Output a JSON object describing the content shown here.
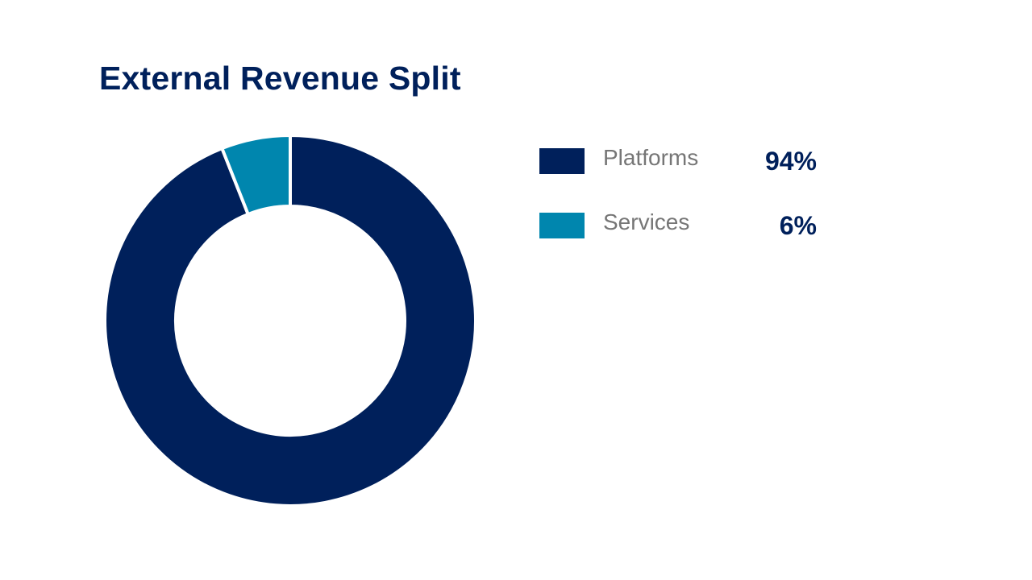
{
  "chart_data": {
    "type": "pie",
    "title": "External Revenue Split",
    "categories": [
      "Platforms",
      "Services"
    ],
    "values": [
      94,
      6
    ],
    "value_labels": [
      "94%",
      "6%"
    ],
    "colors": [
      "#00205b",
      "#0086ae"
    ],
    "donut": true,
    "legend_position": "right"
  }
}
